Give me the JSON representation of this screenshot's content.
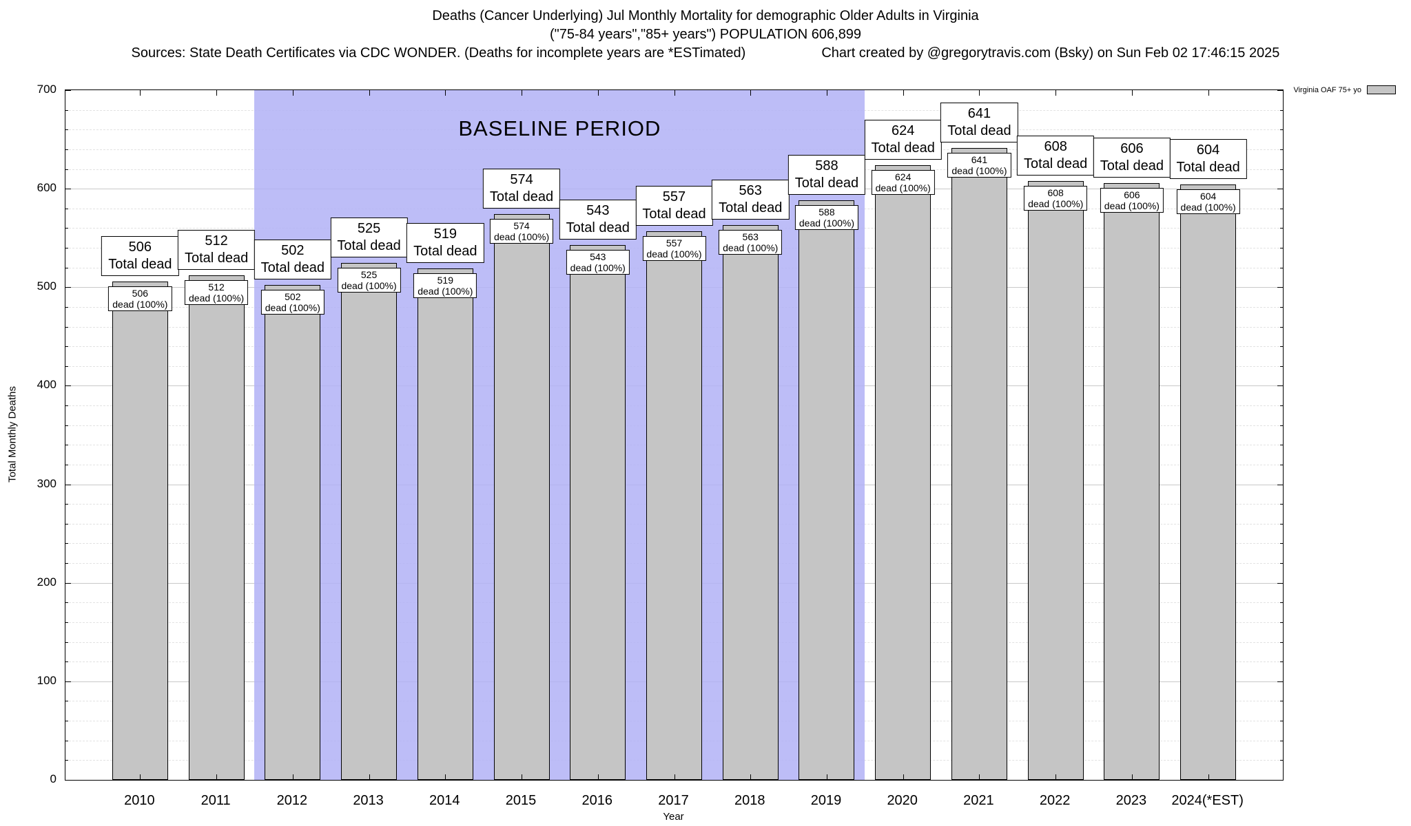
{
  "header": {
    "title": "Deaths (Cancer Underlying) Jul Monthly Mortality for demographic Older Adults in Virginia",
    "subtitle": "(\"75-84 years\",\"85+ years\") POPULATION 606,899",
    "sources": "Sources: State Death Certificates via CDC WONDER. (Deaths for incomplete years are *ESTimated)",
    "credit": "Chart created by @gregorytravis.com (Bsky) on Sun Feb 02 17:46:15 2025"
  },
  "legend": {
    "label": "Virginia OAF 75+ yo"
  },
  "chart_data": {
    "type": "bar",
    "title": "Deaths (Cancer Underlying) Jul Monthly Mortality for demographic Older Adults in Virginia",
    "subtitle": "(\"75-84 years\",\"85+ years\") POPULATION 606,899",
    "xlabel": "Year",
    "ylabel": "Total Monthly Deaths",
    "ylim": [
      0,
      700
    ],
    "yticks": [
      0,
      100,
      200,
      300,
      400,
      500,
      600,
      700
    ],
    "minor_grid_step": 20,
    "legend": "Virginia OAF 75+ yo",
    "categories": [
      "2010",
      "2011",
      "2012",
      "2013",
      "2014",
      "2015",
      "2016",
      "2017",
      "2018",
      "2019",
      "2020",
      "2021",
      "2022",
      "2023",
      "2024(*EST)"
    ],
    "values": [
      506,
      512,
      502,
      525,
      519,
      574,
      543,
      557,
      563,
      588,
      624,
      641,
      608,
      606,
      604
    ],
    "bar_label_line2": "Total dead",
    "bar_inner_line2": "dead (100%)",
    "baseline": {
      "label": "BASELINE PERIOD",
      "start": "2012",
      "end": "2019"
    },
    "colors": {
      "bar_fill": "#c5c5c5",
      "baseline_fill": "#b1b1f6",
      "text": "#000000"
    }
  }
}
